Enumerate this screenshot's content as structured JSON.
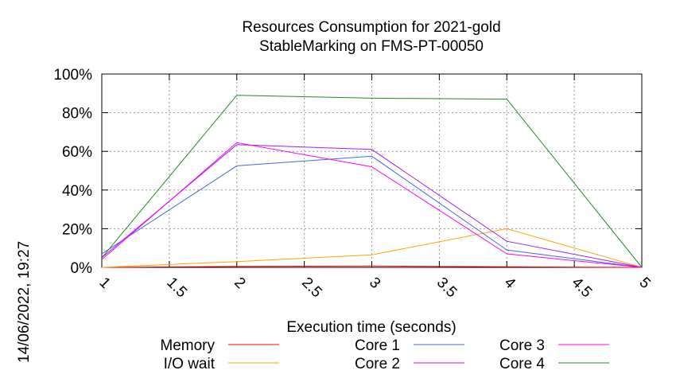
{
  "chart_data": {
    "type": "line",
    "title": "Resources Consumption for 2021-gold",
    "subtitle": "StableMarking on FMS-PT-00050",
    "xlabel": "Execution time (seconds)",
    "ylabel": "",
    "side_label": "14/06/2022, 19:27",
    "xlim": [
      1,
      5
    ],
    "ylim": [
      0,
      100
    ],
    "x_ticks": [
      "1",
      "1.5",
      "2",
      "2.5",
      "3",
      "3.5",
      "4",
      "4.5",
      "5"
    ],
    "x_tick_values": [
      1,
      1.5,
      2,
      2.5,
      3,
      3.5,
      4,
      4.5,
      5
    ],
    "y_ticks": [
      "0%",
      "20%",
      "40%",
      "60%",
      "80%",
      "100%"
    ],
    "y_tick_values": [
      0,
      20,
      40,
      60,
      80,
      100
    ],
    "grid": true,
    "legend_position": "bottom",
    "series": [
      {
        "name": "Memory",
        "color": "#ff0000",
        "x": [
          1,
          2,
          3,
          4,
          5
        ],
        "values": [
          0,
          0.5,
          0.7,
          0.3,
          0
        ]
      },
      {
        "name": "I/O wait",
        "color": "#ffa500",
        "x": [
          1,
          2,
          3,
          4,
          5
        ],
        "values": [
          0,
          3,
          6.5,
          20,
          0
        ]
      },
      {
        "name": "Core 1",
        "color": "#4169e1",
        "x": [
          1,
          2,
          3,
          4,
          5
        ],
        "values": [
          7,
          52.5,
          57.5,
          9,
          0
        ]
      },
      {
        "name": "Core 2",
        "color": "#a020f0",
        "x": [
          1,
          2,
          3,
          4,
          5
        ],
        "values": [
          5,
          63.5,
          61,
          13.5,
          0
        ]
      },
      {
        "name": "Core 3",
        "color": "#ff00ff",
        "x": [
          1,
          2,
          3,
          4,
          5
        ],
        "values": [
          4,
          64.5,
          52,
          7,
          0
        ]
      },
      {
        "name": "Core 4",
        "color": "#228b22",
        "x": [
          1,
          2,
          3,
          4,
          5
        ],
        "values": [
          5,
          89,
          87.5,
          87,
          0
        ]
      }
    ]
  }
}
